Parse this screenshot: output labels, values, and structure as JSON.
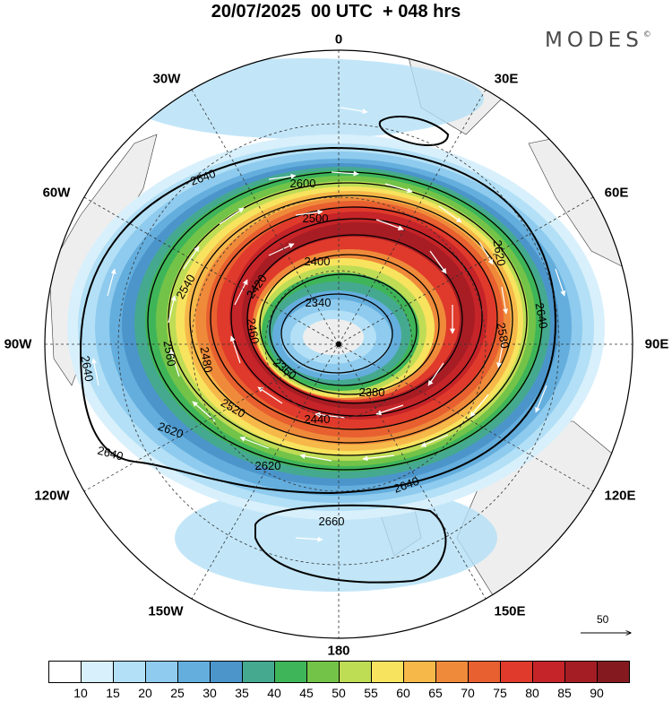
{
  "header": {
    "title": "20/07/2025  00 UTC  + 048 hrs",
    "brand": "MODES",
    "brand_mark": "©"
  },
  "map": {
    "projection": "south polar stereographic",
    "longitude_labels": {
      "top": "0",
      "e30": "30E",
      "e60": "60E",
      "e90": "90E",
      "e120": "120E",
      "e150": "150E",
      "bottom": "180",
      "w150": "150W",
      "w120": "120W",
      "w90": "90W",
      "w60": "60W",
      "w30": "30W"
    },
    "contour_labels": [
      "2640",
      "2600",
      "2500",
      "2400",
      "2340",
      "2360",
      "2380",
      "2440",
      "2480",
      "2520",
      "2560",
      "2620",
      "2660",
      "2420",
      "2460",
      "2540",
      "2580"
    ],
    "vector_reference": {
      "value": "50",
      "icon": "arrow-right-icon"
    }
  },
  "legend": {
    "colors": [
      "#ffffff",
      "#d8f0fb",
      "#b3e0f6",
      "#8ecbee",
      "#64aede",
      "#4b95cb",
      "#45a990",
      "#3fb559",
      "#73c349",
      "#bfdc55",
      "#f7e35e",
      "#f7b84a",
      "#ef8a3a",
      "#e8602f",
      "#df3a2b",
      "#c52428",
      "#a41d24",
      "#841a1f"
    ],
    "ticks": [
      "10",
      "15",
      "20",
      "25",
      "30",
      "35",
      "40",
      "45",
      "50",
      "55",
      "60",
      "65",
      "70",
      "75",
      "80",
      "85",
      "90"
    ]
  }
}
